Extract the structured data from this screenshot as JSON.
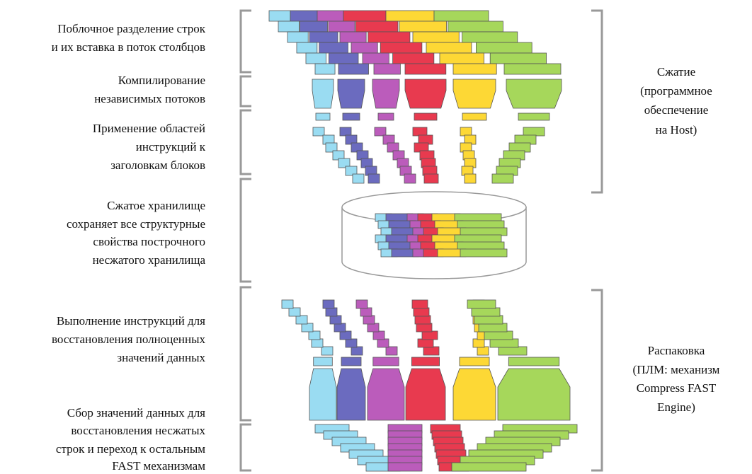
{
  "left_labels": [
    {
      "lines": [
        "Поблочное разделение строк",
        "и их вставка в поток столбцов"
      ]
    },
    {
      "lines": [
        "Компилирование",
        "независимых потоков"
      ]
    },
    {
      "lines": [
        "Применение областей",
        "инструкций к",
        "заголовкам блоков"
      ]
    },
    {
      "lines": [
        "Сжатое хранилище",
        "сохраняет все структурные",
        "свойства построчного",
        "несжатого хранилища"
      ]
    },
    {
      "lines": [
        "Выполнение инструкций для",
        "восстановления полноценных",
        "значений данных"
      ]
    },
    {
      "lines": [
        "Сбор значений данных для",
        "восстановления несжатых",
        "строк и переход к остальным",
        "FAST механизмам"
      ]
    }
  ],
  "right_labels": [
    {
      "lines": [
        "Сжатие",
        "(программное",
        "обеспечение",
        "на Host)"
      ]
    },
    {
      "lines": [
        "Распаковка",
        "(ПЛМ: механизм",
        "Compress FAST",
        "Engine)"
      ]
    }
  ]
}
